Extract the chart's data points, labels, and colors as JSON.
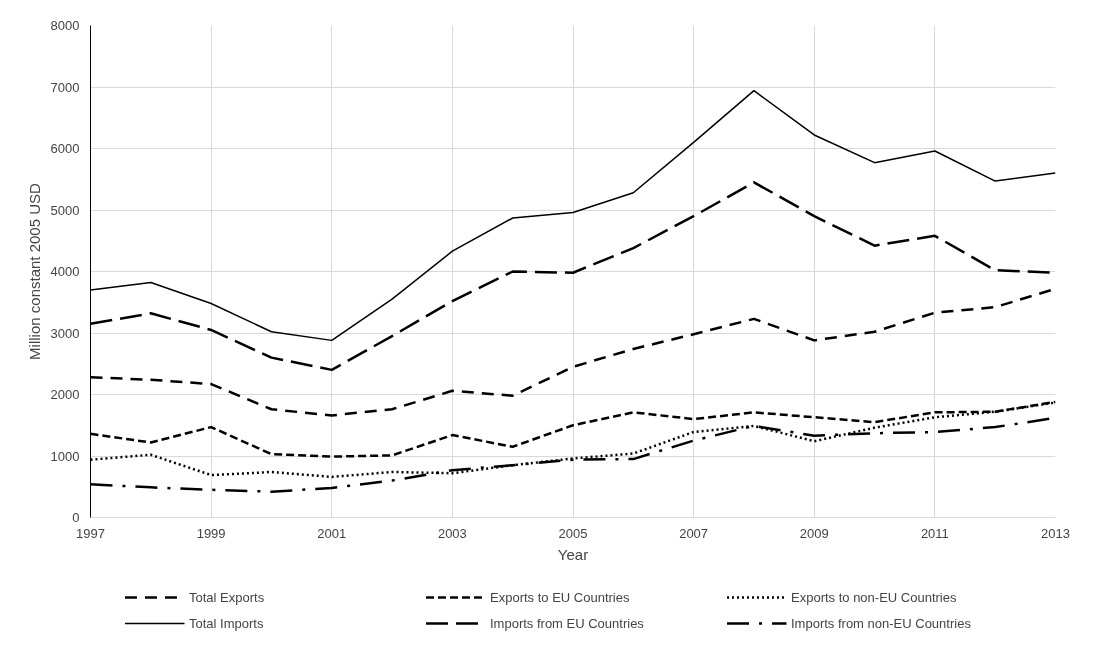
{
  "chart_data": {
    "type": "line",
    "xlabel": "Year",
    "ylabel": "Million constant 2005 USD",
    "x": [
      1997,
      1998,
      1999,
      2000,
      2001,
      2002,
      2003,
      2004,
      2005,
      2006,
      2007,
      2008,
      2009,
      2010,
      2011,
      2012,
      2013
    ],
    "xlim": [
      1997,
      2013
    ],
    "xticks": [
      1997,
      1999,
      2001,
      2003,
      2005,
      2007,
      2009,
      2011,
      2013
    ],
    "ylim": [
      0,
      8000
    ],
    "yticks": [
      0,
      1000,
      2000,
      3000,
      4000,
      5000,
      6000,
      7000,
      8000
    ],
    "grid": true,
    "legend": "bottom",
    "series": [
      {
        "name": "Total Exports",
        "color": "#000000",
        "line_style": "dashed",
        "values": [
          2280,
          2240,
          2170,
          1760,
          1660,
          1760,
          2060,
          1980,
          2450,
          2740,
          2980,
          3230,
          2880,
          3020,
          3330,
          3420,
          3720
        ]
      },
      {
        "name": "Exports to EU Countries",
        "color": "#000000",
        "line_style": "short_dashed",
        "values": [
          1360,
          1220,
          1470,
          1030,
          990,
          1010,
          1340,
          1150,
          1500,
          1710,
          1600,
          1710,
          1630,
          1550,
          1710,
          1720,
          1880
        ]
      },
      {
        "name": "Exports to non-EU Countries",
        "color": "#000000",
        "line_style": "dotted",
        "values": [
          940,
          1020,
          690,
          740,
          660,
          740,
          720,
          850,
          960,
          1040,
          1390,
          1490,
          1240,
          1460,
          1630,
          1720,
          1870
        ]
      },
      {
        "name": "Total Imports",
        "color": "#000000",
        "line_style": "solid",
        "values": [
          3700,
          3820,
          3480,
          3020,
          2880,
          3550,
          4330,
          4870,
          4960,
          5280,
          6100,
          6940,
          6220,
          5770,
          5960,
          5470,
          5600
        ]
      },
      {
        "name": "Imports from EU Countries",
        "color": "#000000",
        "line_style": "long_dashed",
        "values": [
          3150,
          3320,
          3050,
          2600,
          2400,
          2950,
          3520,
          4000,
          3980,
          4380,
          4900,
          5450,
          4900,
          4420,
          4580,
          4020,
          3980
        ]
      },
      {
        "name": "Imports from non-EU Countries",
        "color": "#000000",
        "line_style": "dashdot",
        "values": [
          540,
          490,
          450,
          420,
          480,
          600,
          770,
          850,
          940,
          950,
          1250,
          1490,
          1330,
          1370,
          1390,
          1470,
          1620
        ]
      }
    ]
  }
}
